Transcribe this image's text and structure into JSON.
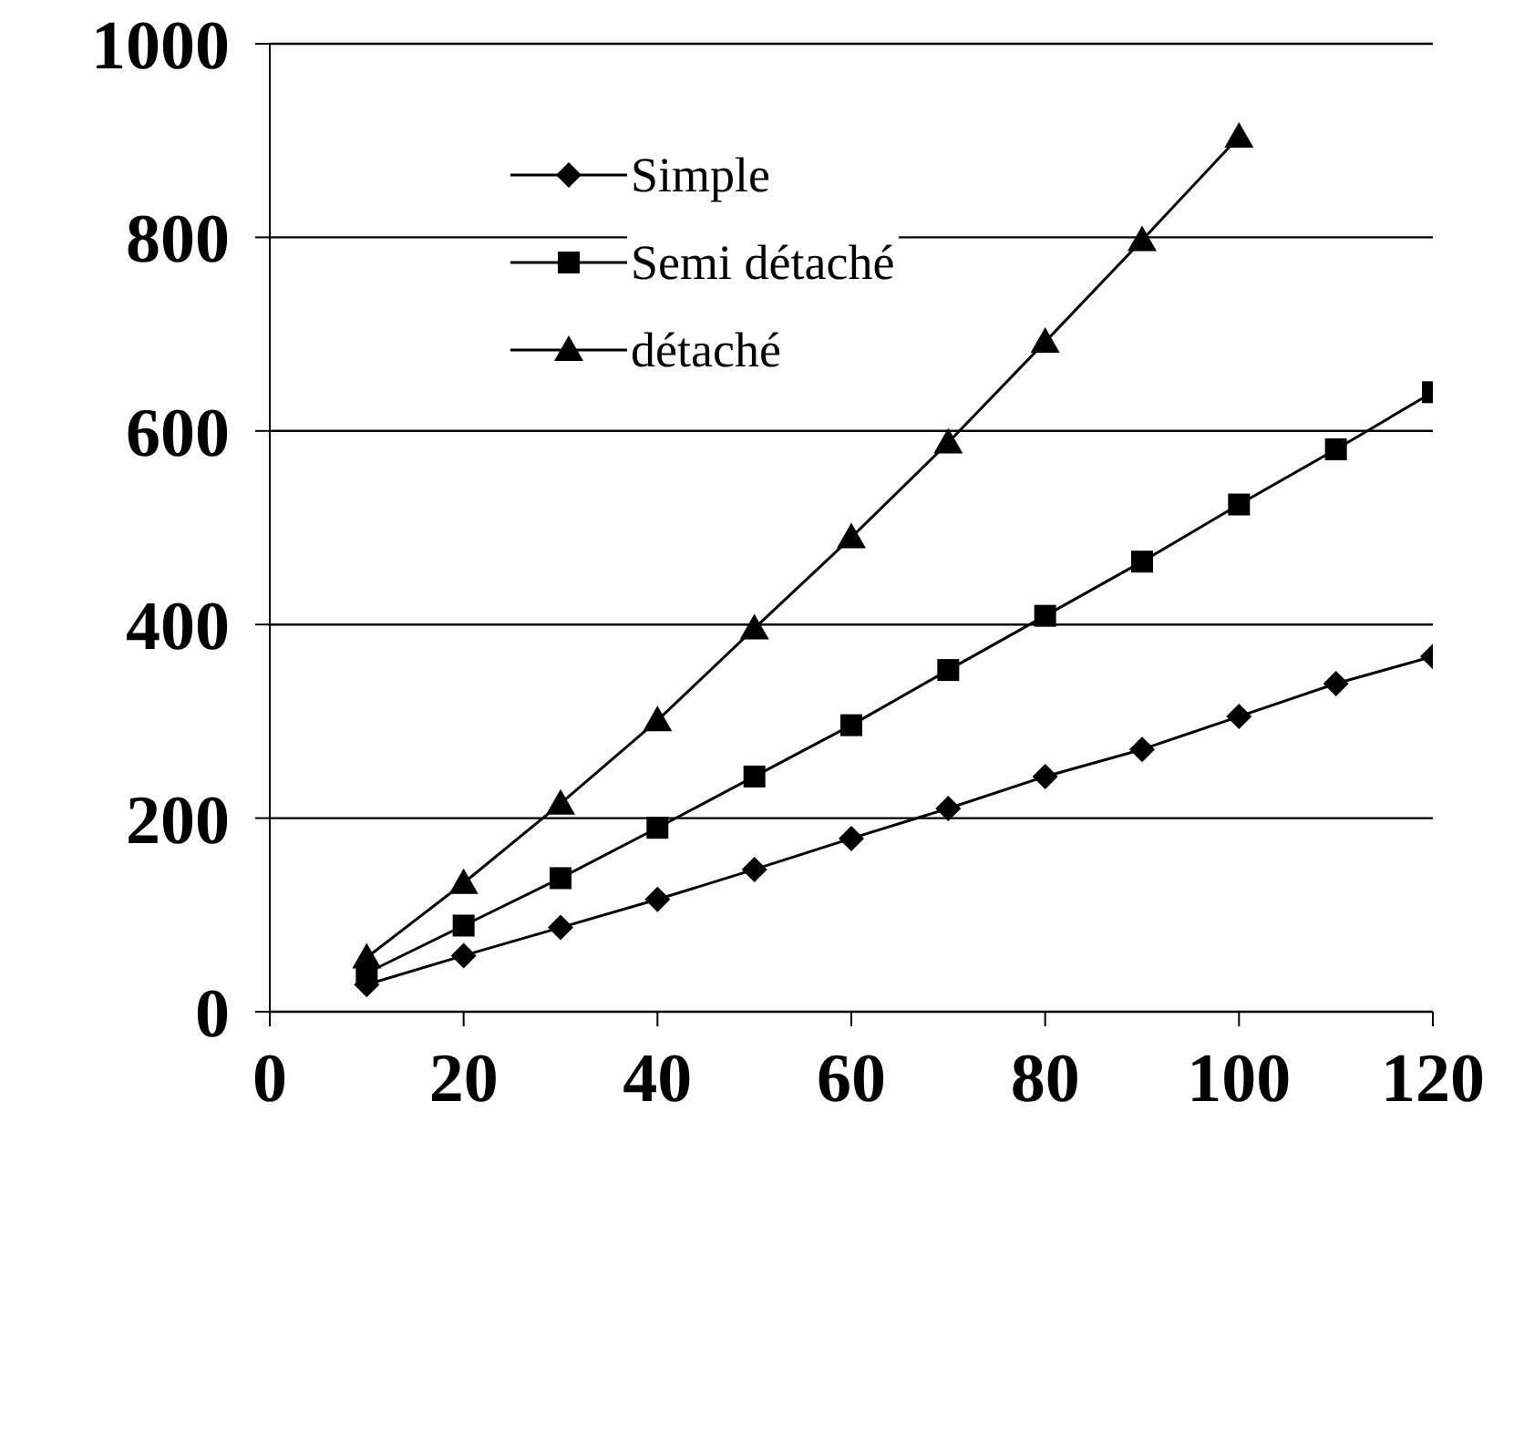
{
  "chart_data": {
    "type": "line",
    "x": [
      10,
      20,
      30,
      40,
      50,
      60,
      70,
      80,
      90,
      100,
      110,
      120
    ],
    "series": [
      {
        "name": "Simple",
        "color": "#000000",
        "marker": "diamond",
        "values": [
          28,
          58,
          87,
          116,
          147,
          179,
          210,
          243,
          271,
          305,
          339,
          367
        ]
      },
      {
        "name": "Semi détaché",
        "color": "#000000",
        "marker": "square",
        "values": [
          40,
          89,
          138,
          190,
          243,
          296,
          353,
          409,
          465,
          524,
          581,
          640
        ]
      },
      {
        "name": "détaché",
        "color": "#000000",
        "marker": "triangle",
        "values": [
          56,
          133,
          215,
          301,
          396,
          490,
          588,
          692,
          797,
          904,
          null,
          null
        ]
      }
    ],
    "xlim": [
      0,
      120
    ],
    "xticks": [
      0,
      20,
      40,
      60,
      80,
      100,
      120
    ],
    "ylim": [
      0,
      1000
    ],
    "yticks": [
      0,
      200,
      400,
      600,
      800,
      1000
    ],
    "grid": "y",
    "legend": "top left",
    "line_style": "solid"
  }
}
